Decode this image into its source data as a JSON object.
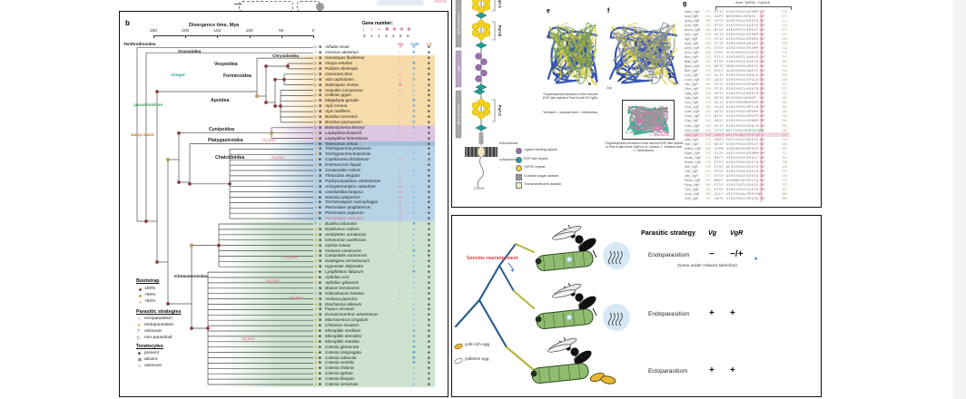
{
  "figure": {
    "panel_label": "b",
    "axis": {
      "title": "Divergence time, Mya",
      "ticks": [
        "250",
        "200",
        "150",
        "100",
        "50",
        "0"
      ]
    },
    "gene_legend": {
      "title": "Gene number:",
      "values": [
        "0",
        "1",
        "2",
        "3",
        "4",
        "5",
        "6"
      ]
    },
    "columns": [
      "Vg",
      "VgR",
      "Lp"
    ],
    "column_colors": {
      "Vg": "#d4608a",
      "VgR": "#5b9bd5",
      "Lp": "#c89a3f"
    },
    "block_colors": {
      "aculeata": "#f7dcab",
      "cynipoidea": "#dcc6e2",
      "platygastroidea": "#9fc2dc",
      "chalcidoidea": "#b9d3e6",
      "ichneumonoidea": "#cde3d0"
    },
    "annotations": {
      "stinger": "stinger",
      "parasitoidism": "parasitoidism",
      "wasp_waist": "wasp-waist",
      "vg_loss": "Vg loss",
      "question": "?"
    },
    "clade_labels": [
      "Tenthredinoidea",
      "Orussoidea",
      "Chrysidoidea",
      "Vespoidea",
      "Formicoidea",
      "Apoidea",
      "Cynipoidea",
      "Platygastroidea",
      "Chalcidoidea",
      "Ichneumonoidea"
    ],
    "legend": {
      "bootstrap": {
        "title": "Bootstrap",
        "items": [
          "100%",
          ">90%",
          ">50%"
        ],
        "colors": [
          "#a0403f",
          "#c9a94e",
          "#ded3b2"
        ]
      },
      "strategies": {
        "title": "Parasitic strategies",
        "items": [
          "ectoparasitism",
          "endoparasitism",
          "unknown",
          "non-parasitoid"
        ]
      },
      "teratocytes": {
        "title": "Teratocytes",
        "items": [
          "present",
          "absent",
          "unknown"
        ]
      }
    },
    "species": [
      [
        "Athalia rosae",
        "n",
        "a",
        2,
        5,
        1
      ],
      [
        "Orussus abietinus",
        "e",
        "a",
        1,
        6,
        1
      ],
      [
        "Gonatopus flavifemur",
        "e",
        "a",
        1,
        1,
        1
      ],
      [
        "Vespa velutina",
        "n",
        "a",
        1,
        3,
        1
      ],
      [
        "Polistes dominula",
        "n",
        "a",
        1,
        4,
        1
      ],
      [
        "Ooceraea biroi",
        "n",
        "a",
        2,
        2,
        1
      ],
      [
        "Atta cephalotes",
        "n",
        "a",
        1,
        5,
        1
      ],
      [
        "Solenopsis invicta",
        "n",
        "a",
        4,
        2,
        1
      ],
      [
        "Ampulex compressa",
        "e",
        "a",
        1,
        2,
        1
      ],
      [
        "Colletes gigas",
        "n",
        "a",
        1,
        2,
        1
      ],
      [
        "Megalopta genalis",
        "n",
        "a",
        1,
        3,
        1
      ],
      [
        "Apis cerana",
        "n",
        "a",
        1,
        4,
        1
      ],
      [
        "Apis mellifera",
        "n",
        "a",
        1,
        4,
        1
      ],
      [
        "Bombus terrestris",
        "n",
        "a",
        1,
        4,
        1
      ],
      [
        "Bombus pascuorum",
        "n",
        "a",
        1,
        4,
        1
      ],
      [
        "Belonocnema kinseyi",
        "n",
        "a",
        1,
        2,
        1
      ],
      [
        "Leptopilina boulardi",
        "d",
        "a",
        1,
        1,
        1
      ],
      [
        "Leptopilina heterotoma",
        "d",
        "a",
        1,
        1,
        1
      ],
      [
        "Telenomus remus",
        "d",
        "p",
        0,
        1,
        1
      ],
      [
        "Trichogramma pretiosum",
        "d",
        "a",
        0,
        1,
        1
      ],
      [
        "Trichogramma brassicae",
        "d",
        "a",
        0,
        1,
        1
      ],
      [
        "Copidosoma floridanum",
        "d",
        "p",
        2,
        2,
        0
      ],
      [
        "Eretmocerus hayati",
        "d",
        "a",
        1,
        1,
        1
      ],
      [
        "Ceratosolen solmsi",
        "n",
        "a",
        1,
        2,
        1
      ],
      [
        "Theocolax elegans",
        "e",
        "a",
        1,
        1,
        1
      ],
      [
        "Pachycrepoideus vindemmiae",
        "e",
        "a",
        2,
        1,
        1
      ],
      [
        "Anisopteromalus calandrae",
        "e",
        "a",
        2,
        1,
        1
      ],
      [
        "Cecidostiba fungosa",
        "e",
        "a",
        2,
        2,
        1
      ],
      [
        "Nasonia vitripennis",
        "e",
        "p",
        2,
        2,
        1
      ],
      [
        "Trichomalopsis sarcophagae",
        "e",
        "p",
        2,
        2,
        1
      ],
      [
        "Pteromalus qinghaiensis",
        "d",
        "p",
        2,
        1,
        1
      ],
      [
        "Pteromalus puparum",
        "d",
        "p",
        2,
        2,
        1
      ],
      [
        "Pteromalus venustus",
        "e",
        "p",
        2,
        1,
        1
      ],
      [
        "Buathra laborator",
        "u",
        "u",
        1,
        3,
        1
      ],
      [
        "Diadromus collaris",
        "d",
        "a",
        1,
        2,
        1
      ],
      [
        "Amblyteles armatorius",
        "d",
        "a",
        1,
        2,
        1
      ],
      [
        "Ichneumon xanthorius",
        "d",
        "a",
        1,
        2,
        1
      ],
      [
        "Ophion luteus",
        "d",
        "a",
        1,
        2,
        1
      ],
      [
        "Venturia canescens",
        "d",
        "a",
        1,
        3,
        1
      ],
      [
        "Campoletis sonorensis",
        "d",
        "a",
        0,
        2,
        1
      ],
      [
        "Diadegma semiclausum",
        "d",
        "a",
        0,
        2,
        1
      ],
      [
        "Hyposoter didymator",
        "d",
        "a",
        0,
        2,
        1
      ],
      [
        "Lysiphlebus fabarum",
        "d",
        "p",
        0,
        3,
        1
      ],
      [
        "Aphidius ervi",
        "d",
        "p",
        0,
        1,
        0
      ],
      [
        "Aphidius gifuensis",
        "d",
        "p",
        0,
        2,
        1
      ],
      [
        "Bracon brevicornis",
        "e",
        "a",
        1,
        1,
        1
      ],
      [
        "Habrobracon hebetor",
        "e",
        "a",
        1,
        1,
        1
      ],
      [
        "Asobara japonica",
        "d",
        "a",
        1,
        1,
        1
      ],
      [
        "Diachasma alloeum",
        "d",
        "a",
        1,
        2,
        1
      ],
      [
        "Fopius arisanus",
        "d",
        "a",
        0,
        2,
        1
      ],
      [
        "Eumacrocentrus americanus",
        "d",
        "a",
        0,
        2,
        1
      ],
      [
        "Macrocentrus cingulum",
        "d",
        "a",
        0,
        1,
        1
      ],
      [
        "Chelonus insularis",
        "d",
        "p",
        0,
        2,
        1
      ],
      [
        "Microplitis mediator",
        "d",
        "p",
        0,
        4,
        1
      ],
      [
        "Microplitis demolitor",
        "d",
        "p",
        0,
        4,
        1
      ],
      [
        "Microplitis manilae",
        "d",
        "p",
        0,
        4,
        1
      ],
      [
        "Cotesia glomerata",
        "d",
        "p",
        0,
        3,
        1
      ],
      [
        "Cotesia congregata",
        "d",
        "p",
        0,
        3,
        1
      ],
      [
        "Cotesia rubecula",
        "d",
        "p",
        0,
        3,
        1
      ],
      [
        "Cotesia vestalis",
        "d",
        "p",
        0,
        3,
        1
      ],
      [
        "Cotesia chilonis",
        "d",
        "p",
        0,
        2,
        1
      ],
      [
        "Cotesia typhae",
        "d",
        "p",
        0,
        1,
        1
      ],
      [
        "Cotesia flavipes",
        "d",
        "p",
        0,
        2,
        1
      ],
      [
        "Cotesia sesamiae",
        "d",
        "p",
        0,
        2,
        1
      ]
    ],
    "highlight_species": "Pteromalus venustus"
  },
  "domain_panel": {
    "sidebar_labels": [
      "EGF precursor",
      "LBD",
      "EGF precursor"
    ],
    "part_labels": [
      "Part A",
      "Part B",
      "Part C"
    ],
    "membrane": {
      "above": "extracellular",
      "below": "cytoplasmic",
      "end": "COOH"
    },
    "legend": [
      "Ligand binding repeat",
      "EGF-like repeat",
      "YWTD repeat",
      "O-linked sugar domain",
      "Transmembrane domain"
    ],
    "legend_colors": [
      "#9b6fae",
      "#1f9e96",
      "#f2d21f",
      "#9a9a9a",
      "#efe8c8"
    ]
  },
  "panel_e": {
    "label": "e",
    "n": "N",
    "c": "C",
    "caption1": "*Superimposed structure of the second EGF-like repeat in Part A with 40 VgRs",
    "caption2": "*exclude L. boulardi and L. heterotoma"
  },
  "panel_f": {
    "label": "f",
    "cys": "Cys",
    "tyr": "Tyr",
    "inset_labels": [
      "A. cerana",
      "L. boulardi",
      "L. heterotoma"
    ],
    "caption": "*Superimposed structure of the second EGF-like repeat in Part A with these VgRs in A. cerana, L. boulardi and L. heterotoma"
  },
  "panel_g": {
    "label": "g",
    "header": "Acer: Tyr294 - Cys316",
    "rows": [
      [
        "Aarm_VgR",
        "277",
        "ETIY GIHIYHSVLKPAMP·GF",
        "299",
        ""
      ],
      [
        "Acal_VgR",
        "301",
        "GAPY NHIEHASLKPAIQ··GF",
        "323",
        ""
      ],
      [
        "Acep_VgR",
        "289",
        "STVY GIHIYHSVLKPATQ·NF",
        "311",
        ""
      ],
      [
        "Acer_VgR",
        "294",
        "ETVY GIHIYHSVLKVATQ·NF",
        "316",
        ""
      ],
      [
        "Acom_VgR",
        "305",
        "NTVF GIHIFHSTLKPAIF·NF",
        "327",
        ""
      ],
      [
        "Aerv_VgR",
        "269",
        "VSIY GIHIYHSVLKPAMP·NF",
        "291",
        ""
      ],
      [
        "Agif_VgR",
        "271",
        "ETIY GIHIYHSVLKPDHH·NF",
        "293",
        ""
      ],
      [
        "Ajap_VgR",
        "283",
        "STIF GIHIYHPVLKPAIF·NF",
        "305",
        ""
      ],
      [
        "Amel_VgR",
        "296",
        "ETVY GIHIYHSVLKPAMP·NF",
        "318",
        ""
      ],
      [
        "Aros_VgR",
        "288",
        "STVY GLHIYHSVLKIATQ·NF",
        "310",
        ""
      ],
      [
        "Bkin_VgR",
        "275",
        "ETLY GIHIYHSTLKAKLE·NF",
        "297",
        ""
      ],
      [
        "Blab_VgR",
        "281",
        "ETVY GIHIYHSVLKVATQ·NF",
        "303",
        ""
      ],
      [
        "Bpas_VgR",
        "292",
        "NEIY GMHIYHSVLKPRIS·NF",
        "314",
        ""
      ],
      [
        "Bter_VgR",
        "293",
        "ETLY GLHIYHSSLKQATE·NF",
        "315",
        ""
      ],
      [
        "Cchi_VgR",
        "266",
        "GLIY GIHIYHSVLKPDLH·NF",
        "288",
        ""
      ],
      [
        "Ccon_VgR",
        "268",
        "GAIY GIHIYHSVLKPGLH·NF",
        "290",
        ""
      ],
      [
        "Cflo_VgR",
        "302",
        "GTIY GIHIYHSVLKPAMP·NF",
        "324",
        ""
      ],
      [
        "Cfun_VgR",
        "299",
        "GTIY GIHIYHSTLKVATQ·NF",
        "321",
        ""
      ],
      [
        "Cgig_VgR",
        "290",
        "GEIY GIHIYHSVLKPDLH·NF",
        "312",
        ""
      ],
      [
        "Cglo_VgR",
        "264",
        "HEIS RFAIYHSLQPAKP··NF",
        "286",
        ""
      ],
      [
        "Cins_VgR",
        "270",
        "GLIY GIHIYHPVWKPRVP·NF",
        "292",
        ""
      ],
      [
        "Crub_VgR",
        "265",
        "GAIY GIHIYHSVLKPTLH·NF",
        "287",
        ""
      ],
      [
        "Cses_VgR",
        "263",
        "AEIY GIHIYHSVLKPAMP·NF",
        "285",
        ""
      ],
      [
        "Cson_VgR",
        "274",
        "NTVY GIHIYHSVLKPAIP·NF",
        "296",
        ""
      ],
      [
        "Ctyp_VgR",
        "262",
        "GAIY GIHIYHSVLKPAMP·NF",
        "284",
        ""
      ],
      [
        "Cves_VgR",
        "267",
        "GLIY GIHIYHSVLKPALH·NF",
        "289",
        ""
      ],
      [
        "Lbou_VgR",
        "258",
        "VTYY DRITYHSLQHHSAYDNP",
        "280",
        "g"
      ],
      [
        "Lhet_VgR",
        "260",
        "LNGP AGITELWVFESSFGESF",
        "282",
        "m"
      ],
      [
        "Lfab_VgR",
        "272",
        "SNVY FAEIYHSVLKPAIR·NF",
        "294",
        ""
      ],
      [
        "Mcin_VgR",
        "278",
        "NEIY GIHIYHSVLKPSIF·NF",
        "300",
        ""
      ],
      [
        "Mdem_VgR",
        "280",
        "VTPM GIHIDHSAIKPAFE·NF",
        "302",
        ""
      ],
      [
        "Mgen_VgR",
        "295",
        "GVIY GVEIYHPVLKPHMH·NF",
        "317",
        ""
      ],
      [
        "Mman_VgR",
        "279",
        "NIFY GIHIYHSVLKPAIL·NF",
        "301",
        ""
      ],
      [
        "Mmed_VgR",
        "276",
        "ETVY GIHIYHSSLKVATQ·NF",
        "298",
        ""
      ],
      [
        "Nvit_VgR",
        "298",
        "ETVY GLHIYHSVLKVATQ·NF",
        "320",
        ""
      ],
      [
        "Obir_VgR",
        "291",
        "ETVY GIHIYHSVLKVATQ·NF",
        "313",
        ""
      ],
      [
        "Olut_VgR",
        "273",
        "ETVY GIHIYHSVLKVATQ·NF",
        "295",
        ""
      ],
      [
        "Pdom_VgR",
        "297",
        "MAPY AVHMDKSAYPSLID·NF",
        "319",
        ""
      ],
      [
        "Ppup_VgR",
        "300",
        "ETVY GIHITHSTLEVATR·NF",
        "322",
        ""
      ],
      [
        "Tpre_VgR",
        "285",
        "ETVY GIHIYHSVLKVATA·NF",
        "307",
        ""
      ],
      [
        "Vcan_VgR",
        "286",
        "GLLY GVSIYHSALPRVFENF",
        "308",
        ""
      ],
      [
        "Vvel_VgR",
        "287",
        "SNTY GIQIYHSLLKPAIQ·NF",
        "309",
        ""
      ]
    ]
  },
  "strategy_panel": {
    "genome_label": "Genome rearrangement",
    "egg_legend": [
      "yolk-rich egg",
      "yolkless egg"
    ],
    "table": {
      "header": [
        "Parasitic strategy",
        "Vg",
        "VgR"
      ],
      "rows": [
        {
          "strategy": "Endoparasitism",
          "vg": "−",
          "vgr": "−/+",
          "note": "(some under relaxed selection)"
        },
        {
          "strategy": "Endoparasitism",
          "vg": "+",
          "vgr": "+",
          "note": ""
        },
        {
          "strategy": "Ectoparasitism",
          "vg": "+",
          "vgr": "+",
          "note": ""
        }
      ]
    }
  }
}
